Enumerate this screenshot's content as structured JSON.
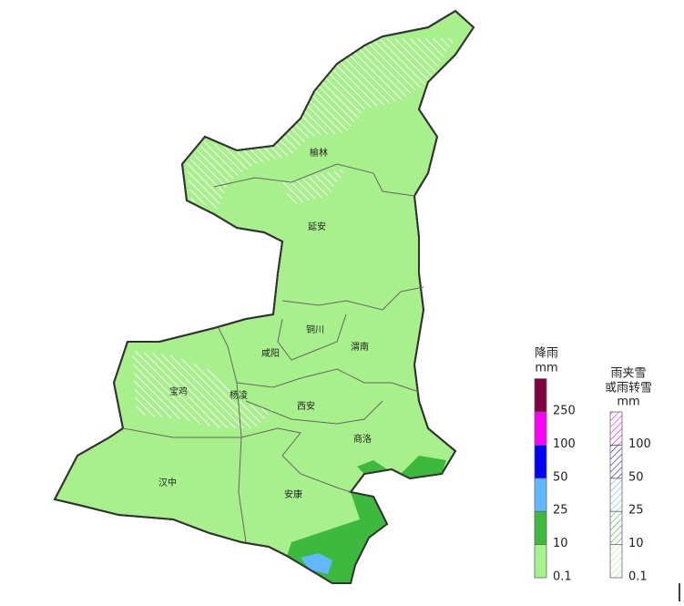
{
  "cities": [
    {
      "label": "榆林"
    },
    {
      "label": "延安"
    },
    {
      "label": "铜川"
    },
    {
      "label": "咸阳"
    },
    {
      "label": "渭南"
    },
    {
      "label": "宝鸡"
    },
    {
      "label": "杨凌"
    },
    {
      "label": "西安"
    },
    {
      "label": "商洛"
    },
    {
      "label": "汉中"
    },
    {
      "label": "安康"
    }
  ],
  "legend_rain": {
    "title": "降雨",
    "unit": "mm",
    "levels": [
      {
        "label": "0.1",
        "color": "#a6f28f"
      },
      {
        "label": "10",
        "color": "#3dba3d"
      },
      {
        "label": "25",
        "color": "#61b8ff"
      },
      {
        "label": "50",
        "color": "#0000fe"
      },
      {
        "label": "100",
        "color": "#fa00fa"
      },
      {
        "label": "250",
        "color": "#800040"
      }
    ]
  },
  "legend_snow": {
    "title": "雨夹雪",
    "subtitle": "或雨转雪",
    "unit": "mm",
    "levels": [
      {
        "label": "0.1",
        "color": "#a6f28f"
      },
      {
        "label": "10",
        "color": "#3dba3d"
      },
      {
        "label": "25",
        "color": "#61b8ff"
      },
      {
        "label": "50",
        "color": "#0000fe"
      },
      {
        "label": "100",
        "color": "#fa00fa"
      }
    ]
  }
}
